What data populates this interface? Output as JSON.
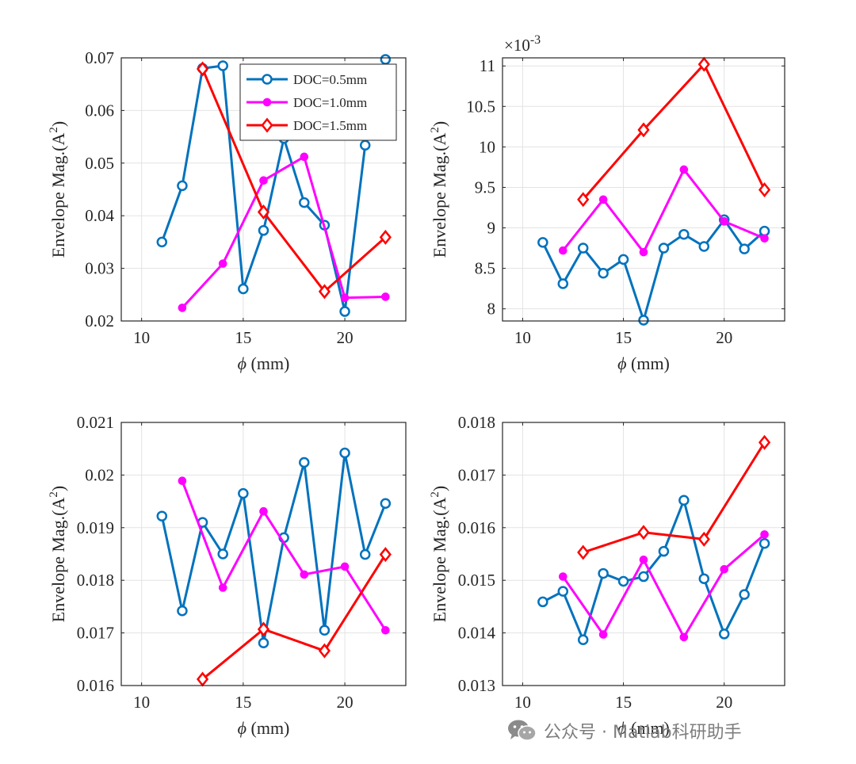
{
  "figure": {
    "xlabel_symbol": "ϕ",
    "xlabel_unit": " (mm)",
    "ylabel": "Envelope Mag.(A",
    "ylabel_sup": "2",
    "ylabel_close": ")"
  },
  "colors": {
    "DOC=0.5mm": "#0072BD",
    "DOC=1.0mm": "#FF00FF",
    "DOC=1.5mm": "#FF0000"
  },
  "chart_data": [
    {
      "type": "line",
      "xlim": [
        9,
        23
      ],
      "ylim": [
        0.02,
        0.07
      ],
      "xticks": [
        10,
        15,
        20
      ],
      "yticks": [
        0.02,
        0.03,
        0.04,
        0.05,
        0.06,
        0.07
      ],
      "ytick_labels": [
        "0.02",
        "0.03",
        "0.04",
        "0.05",
        "0.06",
        "0.07"
      ],
      "grid": true,
      "legend": "top-right",
      "series": [
        {
          "name": "DOC=0.5mm",
          "marker": "circle",
          "x": [
            11,
            12,
            13,
            14,
            15,
            16,
            17,
            18,
            19,
            20,
            21,
            22
          ],
          "y": [
            0.035,
            0.0457,
            0.068,
            0.0685,
            0.0261,
            0.0372,
            0.0547,
            0.0425,
            0.0382,
            0.0218,
            0.0534,
            0.0697
          ]
        },
        {
          "name": "DOC=1.0mm",
          "marker": "dot",
          "x": [
            12,
            14,
            16,
            18,
            20,
            22
          ],
          "y": [
            0.0225,
            0.0309,
            0.0467,
            0.0512,
            0.0244,
            0.0246
          ]
        },
        {
          "name": "DOC=1.5mm",
          "marker": "diamond",
          "x": [
            13,
            16,
            19,
            22
          ],
          "y": [
            0.0679,
            0.0407,
            0.0256,
            0.0359
          ]
        }
      ]
    },
    {
      "type": "line",
      "xlim": [
        9,
        23
      ],
      "ylim": [
        7.85,
        11.1
      ],
      "xticks": [
        10,
        15,
        20
      ],
      "yticks": [
        8,
        8.5,
        9,
        9.5,
        10,
        10.5,
        11
      ],
      "ytick_labels": [
        "8",
        "8.5",
        "9",
        "9.5",
        "10",
        "10.5",
        "11"
      ],
      "exponent_base": "×10",
      "exponent_power": "-3",
      "grid": true,
      "series": [
        {
          "name": "DOC=0.5mm",
          "marker": "circle",
          "x": [
            11,
            12,
            13,
            14,
            15,
            16,
            17,
            18,
            19,
            20,
            21,
            22
          ],
          "y": [
            8.82,
            8.31,
            8.75,
            8.44,
            8.61,
            7.86,
            8.75,
            8.92,
            8.77,
            9.1,
            8.74,
            8.96
          ]
        },
        {
          "name": "DOC=1.0mm",
          "marker": "dot",
          "x": [
            12,
            14,
            16,
            18,
            20,
            22
          ],
          "y": [
            8.72,
            9.35,
            8.7,
            9.72,
            9.08,
            8.87
          ]
        },
        {
          "name": "DOC=1.5mm",
          "marker": "diamond",
          "x": [
            13,
            16,
            19,
            22
          ],
          "y": [
            9.35,
            10.21,
            11.02,
            9.47
          ]
        }
      ]
    },
    {
      "type": "line",
      "xlim": [
        9,
        23
      ],
      "ylim": [
        0.016,
        0.021
      ],
      "xticks": [
        10,
        15,
        20
      ],
      "yticks": [
        0.016,
        0.017,
        0.018,
        0.019,
        0.02,
        0.021
      ],
      "ytick_labels": [
        "0.016",
        "0.017",
        "0.018",
        "0.019",
        "0.02",
        "0.021"
      ],
      "grid": true,
      "series": [
        {
          "name": "DOC=0.5mm",
          "marker": "circle",
          "x": [
            11,
            12,
            13,
            14,
            15,
            16,
            17,
            18,
            19,
            20,
            21,
            22
          ],
          "y": [
            0.01922,
            0.01742,
            0.0191,
            0.0185,
            0.01965,
            0.01681,
            0.01881,
            0.02024,
            0.01705,
            0.02042,
            0.01849,
            0.01946
          ]
        },
        {
          "name": "DOC=1.0mm",
          "marker": "dot",
          "x": [
            12,
            14,
            16,
            18,
            20,
            22
          ],
          "y": [
            0.01989,
            0.01786,
            0.01931,
            0.01811,
            0.01826,
            0.01705
          ]
        },
        {
          "name": "DOC=1.5mm",
          "marker": "diamond",
          "x": [
            13,
            16,
            19,
            22
          ],
          "y": [
            0.01612,
            0.01707,
            0.01666,
            0.01849
          ]
        }
      ]
    },
    {
      "type": "line",
      "xlim": [
        9,
        23
      ],
      "ylim": [
        0.013,
        0.018
      ],
      "xticks": [
        10,
        15,
        20
      ],
      "yticks": [
        0.013,
        0.014,
        0.015,
        0.016,
        0.017,
        0.018
      ],
      "ytick_labels": [
        "0.013",
        "0.014",
        "0.015",
        "0.016",
        "0.017",
        "0.018"
      ],
      "grid": true,
      "series": [
        {
          "name": "DOC=0.5mm",
          "marker": "circle",
          "x": [
            11,
            12,
            13,
            14,
            15,
            16,
            17,
            18,
            19,
            20,
            21,
            22
          ],
          "y": [
            0.01459,
            0.01479,
            0.01387,
            0.01513,
            0.01498,
            0.01507,
            0.01555,
            0.01652,
            0.01503,
            0.01398,
            0.01473,
            0.0157
          ]
        },
        {
          "name": "DOC=1.0mm",
          "marker": "dot",
          "x": [
            12,
            14,
            16,
            18,
            20,
            22
          ],
          "y": [
            0.01507,
            0.01397,
            0.01539,
            0.01392,
            0.01521,
            0.01587
          ]
        },
        {
          "name": "DOC=1.5mm",
          "marker": "diamond",
          "x": [
            13,
            16,
            19,
            22
          ],
          "y": [
            0.01553,
            0.01591,
            0.01578,
            0.01762
          ]
        }
      ]
    }
  ],
  "watermark": {
    "icon": "wechat-icon",
    "text": "公众号 · Matlab科研助手"
  }
}
